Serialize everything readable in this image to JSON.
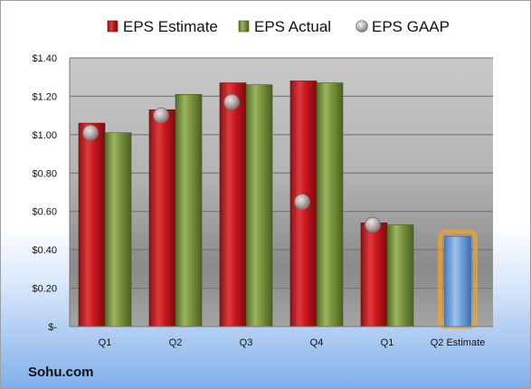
{
  "footer": {
    "company": "Sohu.com"
  },
  "colors": {
    "estimate": "#c6161c",
    "actual": "#77933c",
    "forecast": "#6fa0dc",
    "gaap": "#a7a7a7",
    "forecast_glow": "#f0a030"
  },
  "chart_data": {
    "type": "bar",
    "categories": [
      "Q1",
      "Q2",
      "Q3",
      "Q4",
      "Q1",
      "Q2 Estimate"
    ],
    "series": [
      {
        "name": "EPS Estimate",
        "kind": "bar",
        "values": [
          1.06,
          1.13,
          1.27,
          1.28,
          0.54,
          0.47
        ]
      },
      {
        "name": "EPS Actual",
        "kind": "bar",
        "values": [
          1.01,
          1.21,
          1.26,
          1.27,
          0.53,
          null
        ]
      },
      {
        "name": "EPS GAAP",
        "kind": "scatter",
        "values": [
          1.01,
          1.1,
          1.17,
          0.65,
          0.53,
          null
        ]
      }
    ],
    "yticks": [
      "$1.40",
      "$1.20",
      "$1.00",
      "$0.80",
      "$0.60",
      "$0.40",
      "$0.20",
      "$-"
    ],
    "ylim": [
      0,
      1.4
    ],
    "grid": true,
    "legend": "top"
  }
}
